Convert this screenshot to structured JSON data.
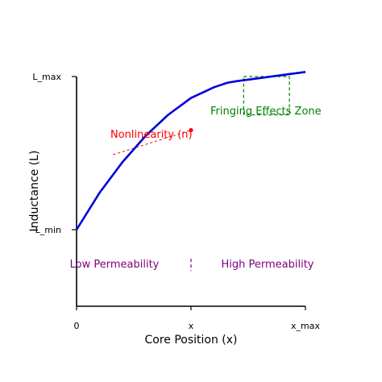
{
  "chart_data": {
    "type": "line",
    "title": "",
    "xlabel": "Core Position (x)",
    "ylabel": "Inductance (L)",
    "x_ticks": [
      "0",
      "x",
      "x_max"
    ],
    "y_ticks": [
      "L_min",
      "L_max"
    ],
    "xlim": [
      0,
      1
    ],
    "ylim": [
      -0.5,
      1
    ],
    "grid": false,
    "legend": "none",
    "series": [
      {
        "color": "#0000dd",
        "x": [
          0,
          0.1,
          0.2,
          0.3,
          0.4,
          0.5,
          0.6,
          0.66,
          0.7,
          0.8,
          0.9,
          1.0
        ],
        "y": [
          0,
          0.24,
          0.44,
          0.61,
          0.75,
          0.86,
          0.93,
          0.96,
          0.97,
          0.99,
          1.01,
          1.03
        ]
      }
    ],
    "annotations": {
      "nonlinearity": {
        "text": "Nonlinearity (n)",
        "color": "#ff0000",
        "point": [
          0.5,
          0.65
        ],
        "tangent": [
          [
            0.16,
            0.49
          ],
          [
            0.5,
            0.65
          ]
        ]
      },
      "fringing": {
        "text": "Fringing Effects Zone",
        "color": "#008000",
        "box_x": [
          0.73,
          0.93
        ],
        "box_y": [
          0.75,
          1.0
        ]
      },
      "permeability": {
        "color": "#800080",
        "low": "Low Permeability",
        "high": "High Permeability",
        "divider_x": 0.5,
        "divider_y": [
          -0.19,
          -0.27
        ],
        "label_y": -0.22
      }
    }
  }
}
